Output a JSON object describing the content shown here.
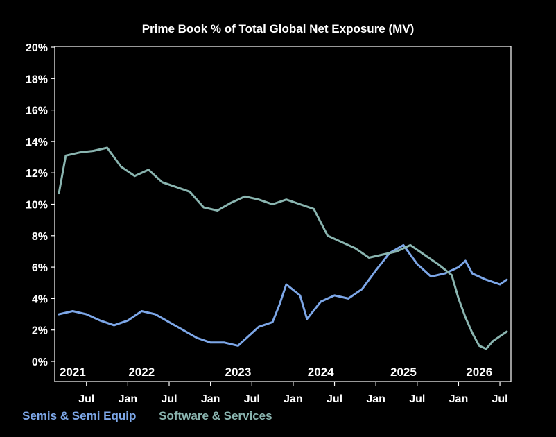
{
  "chart_data": {
    "type": "line",
    "title": "Prime Book % of Total Global Net Exposure (MV)",
    "ylim": [
      0,
      20
    ],
    "y_ticks": [
      "0%",
      "2%",
      "4%",
      "6%",
      "8%",
      "10%",
      "12%",
      "14%",
      "16%",
      "18%",
      "20%"
    ],
    "x_range": [
      "2021-03",
      "2026-08"
    ],
    "x_month_ticks": [
      {
        "date": "2021-07",
        "label": "Jul"
      },
      {
        "date": "2022-01",
        "label": "Jan"
      },
      {
        "date": "2022-07",
        "label": "Jul"
      },
      {
        "date": "2023-01",
        "label": "Jan"
      },
      {
        "date": "2023-07",
        "label": "Jul"
      },
      {
        "date": "2024-01",
        "label": "Jan"
      },
      {
        "date": "2024-07",
        "label": "Jul"
      },
      {
        "date": "2025-01",
        "label": "Jan"
      },
      {
        "date": "2025-07",
        "label": "Jul"
      },
      {
        "date": "2026-01",
        "label": "Jan"
      },
      {
        "date": "2026-07",
        "label": "Jul"
      }
    ],
    "x_year_labels": [
      {
        "date": "2021-05",
        "label": "2021"
      },
      {
        "date": "2022-03",
        "label": "2022"
      },
      {
        "date": "2023-05",
        "label": "2023"
      },
      {
        "date": "2024-05",
        "label": "2024"
      },
      {
        "date": "2025-05",
        "label": "2025"
      },
      {
        "date": "2026-04",
        "label": "2026"
      }
    ],
    "grid": false,
    "legend_position": "bottom-left",
    "series": [
      {
        "name": "Semis & Semi Equip",
        "color": "#7da7e8",
        "points": [
          [
            "2021-03",
            3.0
          ],
          [
            "2021-05",
            3.2
          ],
          [
            "2021-07",
            3.0
          ],
          [
            "2021-09",
            2.6
          ],
          [
            "2021-11",
            2.3
          ],
          [
            "2022-01",
            2.6
          ],
          [
            "2022-03",
            3.2
          ],
          [
            "2022-05",
            3.0
          ],
          [
            "2022-07",
            2.5
          ],
          [
            "2022-09",
            2.0
          ],
          [
            "2022-11",
            1.5
          ],
          [
            "2023-01",
            1.2
          ],
          [
            "2023-03",
            1.2
          ],
          [
            "2023-05",
            1.0
          ],
          [
            "2023-06",
            1.4
          ],
          [
            "2023-08",
            2.2
          ],
          [
            "2023-10",
            2.5
          ],
          [
            "2023-11",
            3.6
          ],
          [
            "2023-12",
            4.9
          ],
          [
            "2024-02",
            4.2
          ],
          [
            "2024-03",
            2.7
          ],
          [
            "2024-05",
            3.8
          ],
          [
            "2024-07",
            4.2
          ],
          [
            "2024-09",
            4.0
          ],
          [
            "2024-11",
            4.6
          ],
          [
            "2025-01",
            5.8
          ],
          [
            "2025-03",
            6.9
          ],
          [
            "2025-05",
            7.4
          ],
          [
            "2025-07",
            6.2
          ],
          [
            "2025-09",
            5.4
          ],
          [
            "2025-11",
            5.6
          ],
          [
            "2026-01",
            6.0
          ],
          [
            "2026-02",
            6.4
          ],
          [
            "2026-03",
            5.6
          ],
          [
            "2026-04",
            5.4
          ],
          [
            "2026-05",
            5.2
          ],
          [
            "2026-07",
            4.9
          ],
          [
            "2026-08",
            5.2
          ]
        ]
      },
      {
        "name": "Software & Services",
        "color": "#8ab5b0",
        "points": [
          [
            "2021-03",
            10.7
          ],
          [
            "2021-04",
            13.1
          ],
          [
            "2021-06",
            13.3
          ],
          [
            "2021-08",
            13.4
          ],
          [
            "2021-10",
            13.6
          ],
          [
            "2021-12",
            12.4
          ],
          [
            "2022-02",
            11.8
          ],
          [
            "2022-04",
            12.2
          ],
          [
            "2022-06",
            11.4
          ],
          [
            "2022-08",
            11.1
          ],
          [
            "2022-10",
            10.8
          ],
          [
            "2022-12",
            9.8
          ],
          [
            "2023-02",
            9.6
          ],
          [
            "2023-04",
            10.1
          ],
          [
            "2023-06",
            10.5
          ],
          [
            "2023-08",
            10.3
          ],
          [
            "2023-10",
            10.0
          ],
          [
            "2023-12",
            10.3
          ],
          [
            "2024-02",
            10.0
          ],
          [
            "2024-04",
            9.7
          ],
          [
            "2024-06",
            8.0
          ],
          [
            "2024-08",
            7.6
          ],
          [
            "2024-10",
            7.2
          ],
          [
            "2024-12",
            6.6
          ],
          [
            "2025-02",
            6.8
          ],
          [
            "2025-04",
            7.0
          ],
          [
            "2025-06",
            7.4
          ],
          [
            "2025-08",
            6.8
          ],
          [
            "2025-10",
            6.2
          ],
          [
            "2025-12",
            5.5
          ],
          [
            "2026-01",
            4.0
          ],
          [
            "2026-02",
            2.8
          ],
          [
            "2026-03",
            1.8
          ],
          [
            "2026-04",
            1.0
          ],
          [
            "2026-05",
            0.8
          ],
          [
            "2026-06",
            1.3
          ],
          [
            "2026-07",
            1.6
          ],
          [
            "2026-08",
            1.9
          ]
        ]
      }
    ]
  }
}
